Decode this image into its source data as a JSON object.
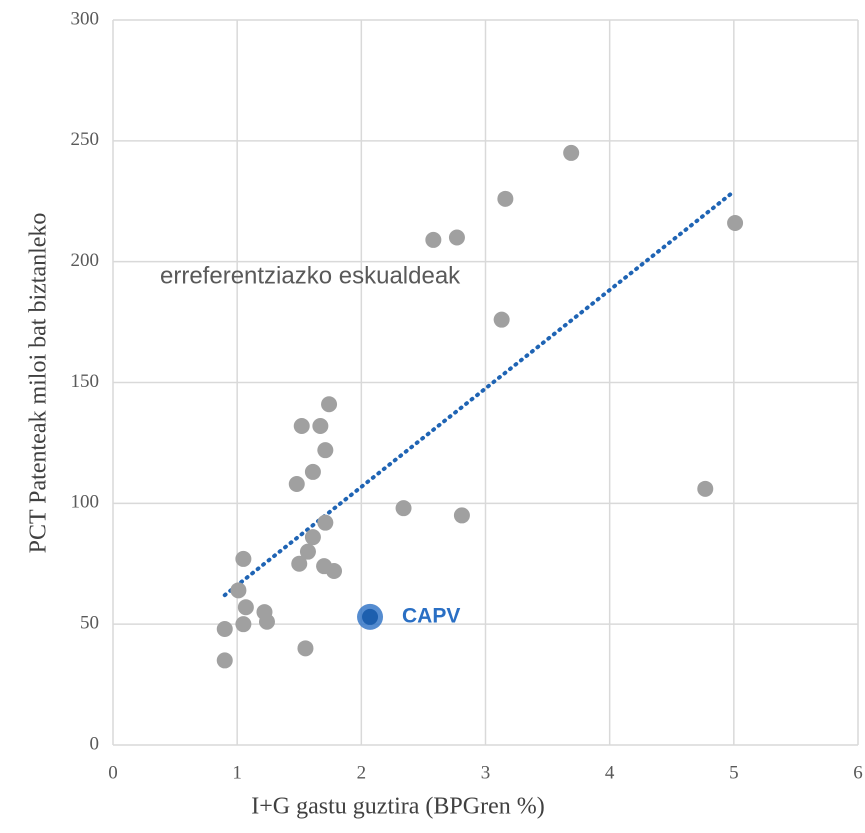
{
  "chart_data": {
    "type": "scatter",
    "xlabel": "I+G gastu guztira (BPGren %)",
    "ylabel": "PCT Patenteak miloi bat biztanleko",
    "xlim": [
      0,
      6
    ],
    "xticks": [
      0,
      1,
      2,
      3,
      4,
      5,
      6
    ],
    "ylim": [
      0,
      300
    ],
    "yticks": [
      0,
      50,
      100,
      150,
      200,
      250,
      300
    ],
    "grid": true,
    "series": [
      {
        "name": "erreferentziazko eskualdeak",
        "color": "#a0a0a0",
        "x": [
          3.69,
          3.16,
          2.58,
          2.77,
          5.01,
          3.13,
          4.77,
          2.34,
          2.81,
          1.74,
          1.52,
          1.67,
          1.71,
          1.61,
          1.48,
          1.71,
          1.61,
          1.57,
          1.05,
          1.5,
          1.7,
          1.78,
          1.01,
          1.07,
          1.22,
          1.24,
          1.05,
          0.9,
          0.9,
          1.55
        ],
        "values": [
          245,
          226,
          209,
          210,
          216,
          176,
          106,
          98,
          95,
          141,
          132,
          132,
          122,
          113,
          108,
          92,
          86,
          80,
          77,
          75,
          74,
          72,
          64,
          57,
          55,
          51,
          50,
          48,
          35,
          40
        ]
      },
      {
        "name": "CAPV",
        "color": "#2a6fc4",
        "x": [
          2.07
        ],
        "values": [
          53
        ]
      }
    ],
    "trendline": {
      "color": "#1f64b4",
      "x": [
        0.9,
        5.0
      ],
      "values": [
        62,
        229
      ]
    }
  }
}
